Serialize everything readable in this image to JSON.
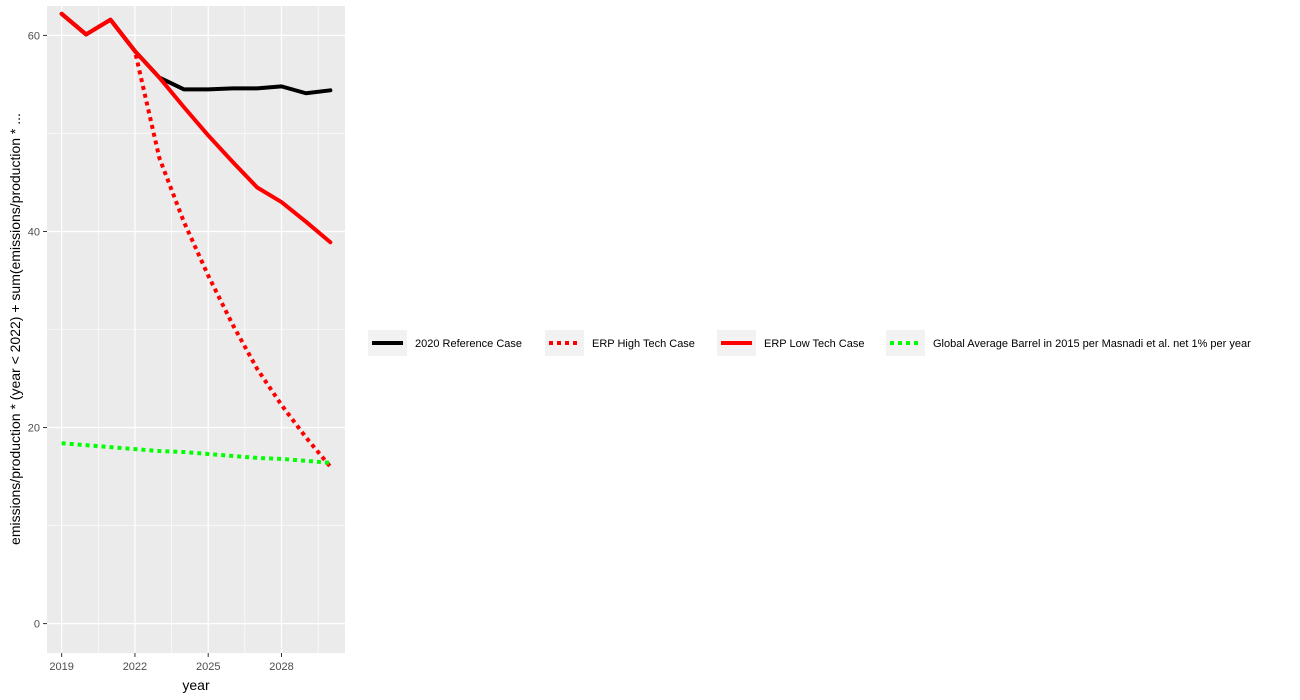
{
  "chart_data": {
    "type": "line",
    "xlabel": "year",
    "ylabel": "emissions/production * (year < 2022) + sum(emissions/production * ...",
    "xlim": [
      2018.4,
      2030.6
    ],
    "ylim": [
      -3,
      63
    ],
    "x_ticks": [
      2019,
      2022,
      2025,
      2028
    ],
    "y_ticks": [
      0,
      20,
      40,
      60
    ],
    "x_minor_ticks": [
      2020.5,
      2023.5,
      2026.5,
      2029.5
    ],
    "y_minor_ticks": [
      10,
      30,
      50
    ],
    "grid": true,
    "panel_background": "#ebebeb",
    "legend_position": "right",
    "series": [
      {
        "name": "2020 Reference Case",
        "color": "#000000",
        "dash": "solid",
        "x": [
          2019,
          2020,
          2021,
          2022,
          2023,
          2024,
          2025,
          2026,
          2027,
          2028,
          2029,
          2030
        ],
        "y": [
          62.2,
          60.1,
          61.6,
          58.4,
          55.7,
          54.5,
          54.5,
          54.6,
          54.6,
          54.8,
          54.1,
          54.4
        ]
      },
      {
        "name": "ERP High Tech Case",
        "color": "#ff0000",
        "dash": "dotted",
        "x": [
          2019,
          2020,
          2021,
          2022,
          2023,
          2024,
          2025,
          2026,
          2027,
          2028,
          2029,
          2030
        ],
        "y": [
          62.2,
          60.1,
          61.6,
          58.4,
          47.5,
          41.0,
          35.5,
          30.5,
          26.0,
          22.3,
          19.0,
          16.0
        ]
      },
      {
        "name": "ERP Low Tech Case",
        "color": "#ff0000",
        "dash": "solid",
        "x": [
          2019,
          2020,
          2021,
          2022,
          2023,
          2024,
          2025,
          2026,
          2027,
          2028,
          2029,
          2030
        ],
        "y": [
          62.2,
          60.1,
          61.6,
          58.4,
          55.7,
          52.7,
          49.8,
          47.1,
          44.5,
          43.0,
          41.0,
          38.9
        ]
      },
      {
        "name": "Global Average Barrel in 2015 per Masnadi et al. net 1% per year",
        "color": "#00ff00",
        "dash": "dotted",
        "x": [
          2019,
          2020,
          2021,
          2022,
          2023,
          2024,
          2025,
          2026,
          2027,
          2028,
          2029,
          2030
        ],
        "y": [
          18.4,
          18.2,
          18.0,
          17.8,
          17.6,
          17.5,
          17.3,
          17.1,
          16.9,
          16.8,
          16.6,
          16.4
        ]
      }
    ]
  }
}
